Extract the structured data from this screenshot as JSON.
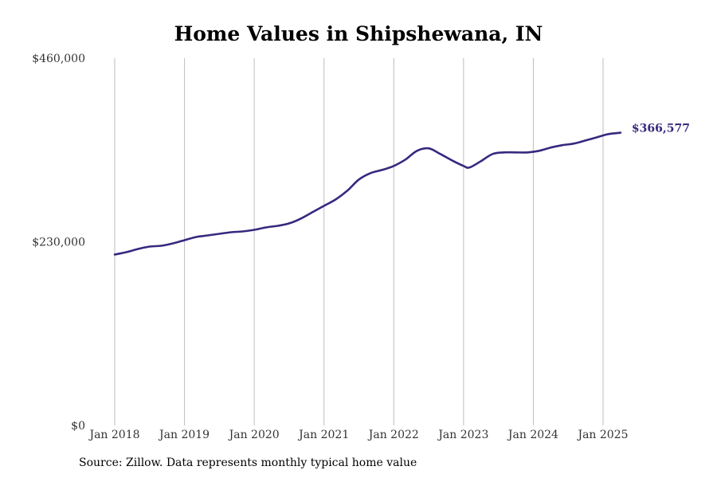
{
  "chart_data": {
    "type": "line",
    "title": "Home Values in Shipshewana, IN",
    "source": "Source: Zillow. Data represents monthly typical home value",
    "xlabel": "",
    "ylabel": "",
    "ylim": [
      0,
      460000
    ],
    "y_ticks": [
      {
        "value": 0,
        "label": "$0"
      },
      {
        "value": 230000,
        "label": "$230,000"
      },
      {
        "value": 460000,
        "label": "$460,000"
      }
    ],
    "x_range": [
      "2018-01",
      "2025-06"
    ],
    "x_ticks": [
      {
        "date": "2018-01",
        "label": "Jan 2018"
      },
      {
        "date": "2019-01",
        "label": "Jan 2019"
      },
      {
        "date": "2020-01",
        "label": "Jan 2020"
      },
      {
        "date": "2021-01",
        "label": "Jan 2021"
      },
      {
        "date": "2022-01",
        "label": "Jan 2022"
      },
      {
        "date": "2023-01",
        "label": "Jan 2023"
      },
      {
        "date": "2024-01",
        "label": "Jan 2024"
      },
      {
        "date": "2025-01",
        "label": "Jan 2025"
      }
    ],
    "grid": "vertical",
    "line_color": "#35297f",
    "end_label": "$366,577",
    "series": [
      {
        "x": [
          "2018-01",
          "2018-03",
          "2018-05",
          "2018-07",
          "2018-09",
          "2018-11",
          "2019-01",
          "2019-03",
          "2019-05",
          "2019-07",
          "2019-09",
          "2019-11",
          "2020-01",
          "2020-03",
          "2020-05",
          "2020-07",
          "2020-09",
          "2020-11",
          "2021-01",
          "2021-03",
          "2021-05",
          "2021-07",
          "2021-09",
          "2021-11",
          "2022-01",
          "2022-03",
          "2022-05",
          "2022-07",
          "2022-09",
          "2022-11",
          "2023-01",
          "2023-02",
          "2023-04",
          "2023-06",
          "2023-08",
          "2023-10",
          "2023-12",
          "2024-02",
          "2024-04",
          "2024-06",
          "2024-08",
          "2024-10",
          "2024-12",
          "2025-02",
          "2025-04"
        ],
        "y": [
          214000,
          217000,
          221000,
          224000,
          225000,
          228000,
          232000,
          236000,
          238000,
          240000,
          242000,
          243000,
          245000,
          248000,
          250000,
          253000,
          259000,
          267000,
          275000,
          283000,
          294000,
          308000,
          316000,
          320000,
          325000,
          333000,
          344000,
          347000,
          340000,
          332000,
          325000,
          323000,
          331000,
          340000,
          342000,
          342000,
          342000,
          344000,
          348000,
          351000,
          353000,
          357000,
          361000,
          365000,
          366577
        ]
      }
    ]
  }
}
